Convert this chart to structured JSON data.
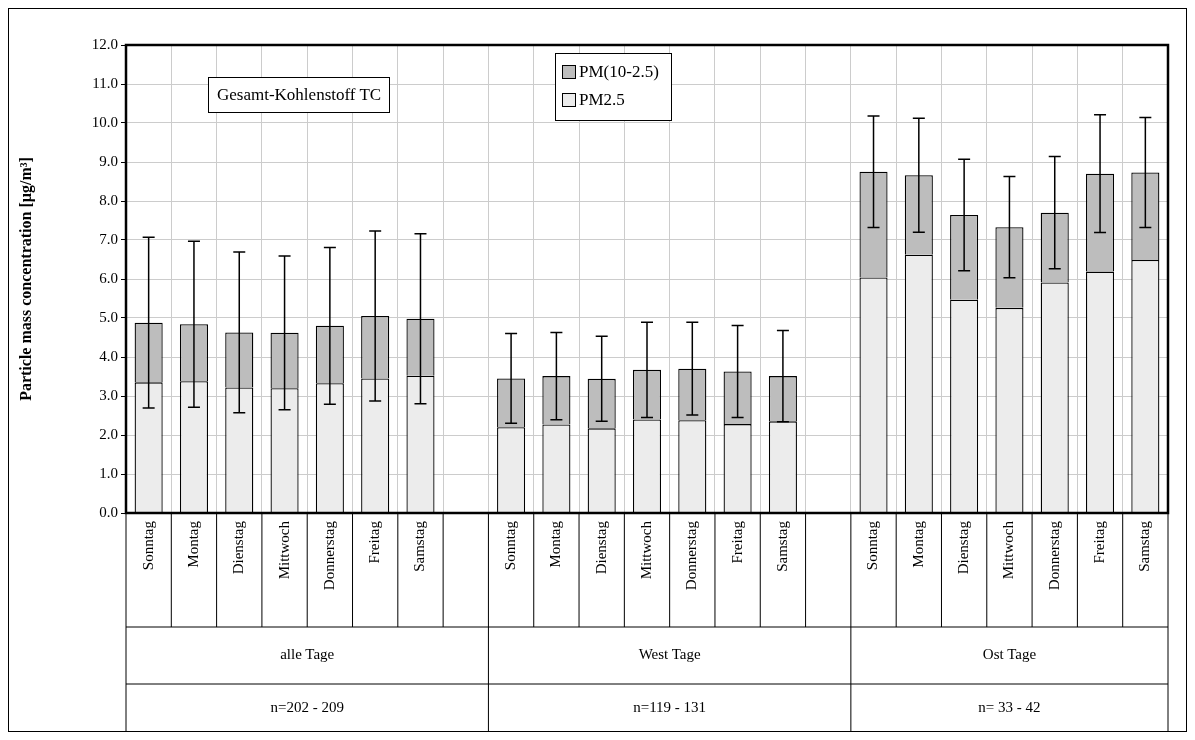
{
  "chart_data": {
    "type": "bar",
    "stacked": true,
    "ylabel": "Particle mass concentration [µg/m³]",
    "categories": [
      "Sonntag",
      "Montag",
      "Dienstag",
      "Mittwoch",
      "Donnerstag",
      "Freitag",
      "Samstag",
      null,
      "Sonntag",
      "Montag",
      "Dienstag",
      "Mittwoch",
      "Donnerstag",
      "Freitag",
      "Samstag",
      null,
      "Sonntag",
      "Montag",
      "Dienstag",
      "Mittwoch",
      "Donnerstag",
      "Freitag",
      "Samstag"
    ],
    "series": [
      {
        "name": "PM2.5",
        "color": "#ececec",
        "values": [
          3.35,
          3.38,
          3.22,
          3.2,
          3.33,
          3.45,
          3.52,
          null,
          2.2,
          2.27,
          2.17,
          2.4,
          2.38,
          2.28,
          2.35,
          null,
          6.04,
          6.62,
          5.47,
          5.26,
          5.91,
          6.19,
          6.49
        ]
      },
      {
        "name": "PM(10-2.5)",
        "color": "#bdbdbd",
        "values": [
          1.53,
          1.46,
          1.41,
          1.42,
          1.47,
          1.6,
          1.46,
          null,
          1.25,
          1.24,
          1.27,
          1.27,
          1.32,
          1.35,
          1.16,
          null,
          2.71,
          2.04,
          2.17,
          2.07,
          1.79,
          2.51,
          2.24
        ],
        "errors": [
          2.19,
          2.13,
          2.06,
          1.97,
          2.01,
          2.18,
          2.18,
          null,
          1.15,
          1.12,
          1.09,
          1.22,
          1.19,
          1.18,
          1.17,
          null,
          1.43,
          1.46,
          1.43,
          1.3,
          1.44,
          1.51,
          1.41
        ]
      }
    ],
    "ylim": [
      0,
      12
    ],
    "yticks": [
      {
        "value": 0,
        "label": "0.0"
      },
      {
        "value": 1,
        "label": "1.0"
      },
      {
        "value": 2,
        "label": "2.0"
      },
      {
        "value": 3,
        "label": "3.0"
      },
      {
        "value": 4,
        "label": "4.0"
      },
      {
        "value": 5,
        "label": "5.0"
      },
      {
        "value": 6,
        "label": "6.0"
      },
      {
        "value": 7,
        "label": "7.0"
      },
      {
        "value": 8,
        "label": "8.0"
      },
      {
        "value": 9,
        "label": "9.0"
      },
      {
        "value": 10,
        "label": "10.0"
      },
      {
        "value": 11,
        "label": "11.0"
      },
      {
        "value": 12,
        "label": "12.0"
      }
    ],
    "grid": true,
    "legend": "top",
    "annotations": [
      "Gesamt-Kohlenstoff TC",
      "alle Tage",
      "West Tage",
      "Ost Tage",
      "n=202 - 209",
      "n=119 - 131",
      "n= 33 - 42"
    ]
  }
}
